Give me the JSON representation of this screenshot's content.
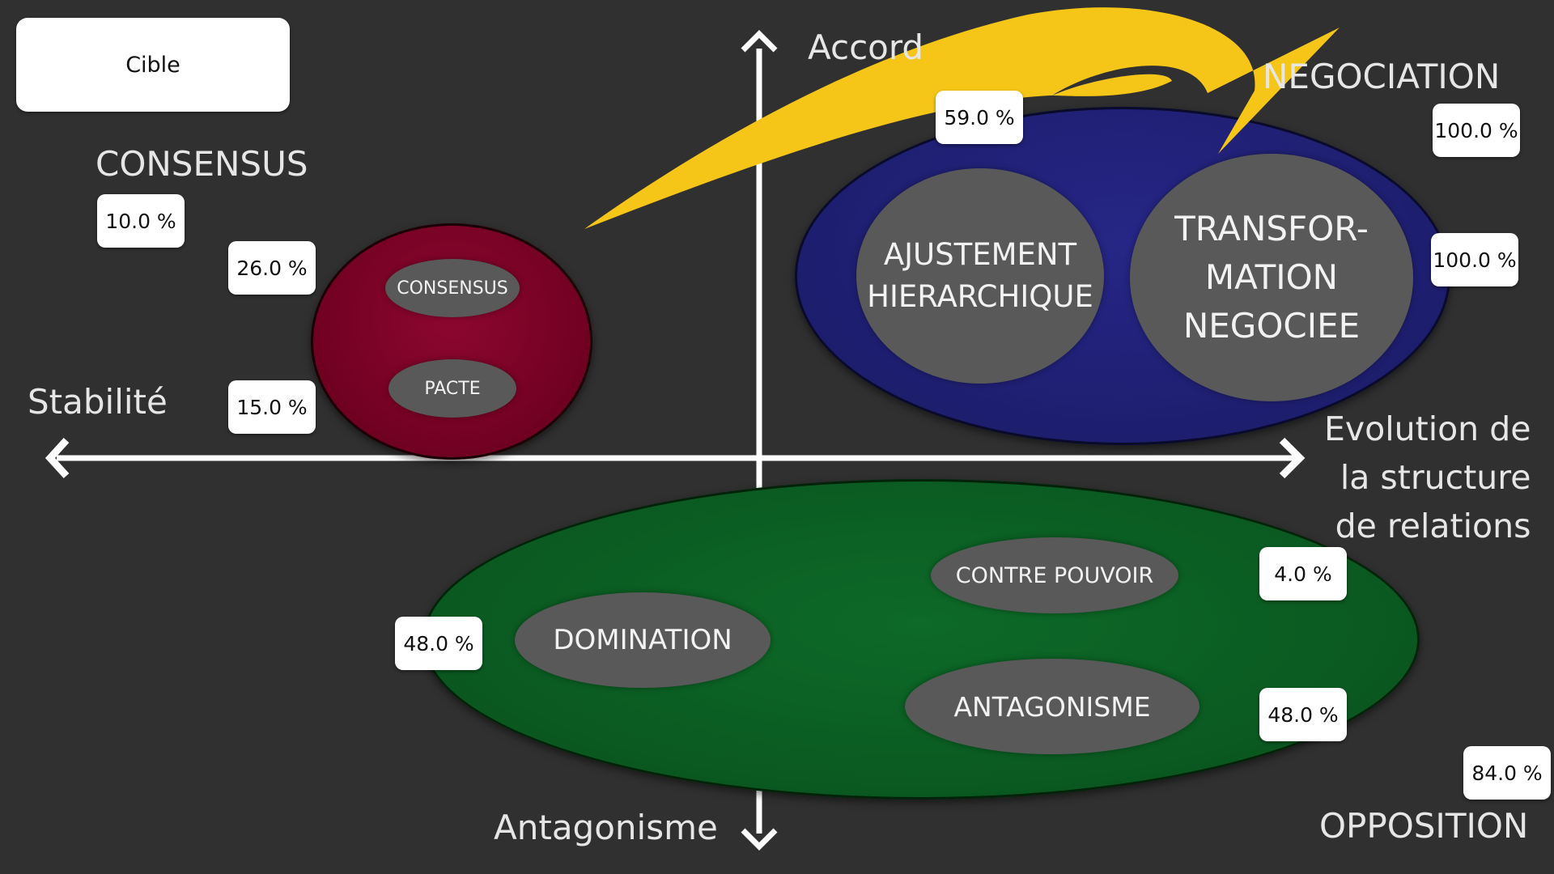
{
  "target": {
    "label": "Cible"
  },
  "axes": {
    "top": "Accord",
    "bottom": "Antagonisme",
    "left": "Stabilité",
    "right_lines": [
      "Evolution de",
      "la structure",
      "de relations"
    ]
  },
  "quadrants": {
    "consensus": "CONSENSUS",
    "negociation": "NEGOCIATION",
    "opposition": "OPPOSITION"
  },
  "groups": {
    "consensus": {
      "items": [
        "CONSENSUS",
        "PACTE"
      ],
      "color": "#7b0025"
    },
    "negociation": {
      "items": [
        "AJUSTEMENT",
        "HIERARCHIQUE",
        "TRANSFOR-",
        "MATION",
        "NEGOCIEE"
      ],
      "color": "#1e1e72"
    },
    "opposition": {
      "items": [
        "CONTRE POUVOIR",
        "DOMINATION",
        "ANTAGONISME"
      ],
      "color": "#0b5a22"
    }
  },
  "values": {
    "consensus_total": "10.0 %",
    "consensus_item": "26.0 %",
    "pacte_item": "15.0 %",
    "ajustement_item": "59.0 %",
    "negociation_total": "100.0 %",
    "transformation_item": "100.0 %",
    "contre_pouvoir_item": "4.0 %",
    "domination_item": "48.0 %",
    "antagonisme_item": "48.0 %",
    "opposition_total": "84.0 %"
  },
  "colors": {
    "background": "#303030",
    "arrow": "#f5c518",
    "axis": "#ffffff"
  }
}
